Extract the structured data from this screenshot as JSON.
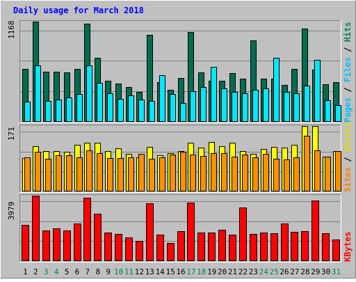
{
  "chart_data": {
    "title": "Daily usage for March 2018",
    "type": "bar",
    "x_labels": [
      "1",
      "2",
      "3",
      "4",
      "5",
      "6",
      "7",
      "8",
      "9",
      "10",
      "11",
      "12",
      "13",
      "14",
      "15",
      "16",
      "17",
      "18",
      "19",
      "20",
      "21",
      "22",
      "23",
      "24",
      "25",
      "26",
      "27",
      "28",
      "29",
      "30",
      "31"
    ],
    "weekend_days": [
      3,
      4,
      10,
      11,
      17,
      18,
      24,
      25,
      31
    ],
    "grid": true,
    "panels": [
      {
        "id": "hits-panel",
        "axis_max_label": "1168",
        "ymax": 1168,
        "series": [
          {
            "name": "Hits",
            "color": "#006C50",
            "values": [
              610,
              1168,
              580,
              580,
              570,
              615,
              1140,
              740,
              470,
              440,
              400,
              345,
              1010,
              455,
              370,
              510,
              1045,
              570,
              470,
              470,
              560,
              500,
              950,
              500,
              500,
              425,
              615,
              1085,
              605,
              430,
              460
            ]
          },
          {
            "name": "Files",
            "color": "#00E8FF",
            "values": [
              225,
              650,
              240,
              255,
              275,
              315,
              650,
              450,
              330,
              265,
              300,
              255,
              240,
              540,
              320,
              215,
              350,
              400,
              635,
              385,
              340,
              330,
              370,
              380,
              745,
              340,
              330,
              420,
              715,
              245,
              190
            ]
          }
        ]
      },
      {
        "id": "visits-panel",
        "axis_max_label": "171",
        "ymax": 171,
        "series": [
          {
            "name": "Visits",
            "color": "#FFFF00",
            "values": [
              86,
              118,
              104,
              105,
              103,
              121,
              127,
              126,
              104,
              112,
              97,
              88,
              115,
              94,
              100,
              105,
              126,
              114,
              128,
              117,
              127,
              105,
              97,
              111,
              116,
              114,
              121,
              171,
              171,
              90,
              105
            ]
          },
          {
            "name": "Sites",
            "color": "#FF9000",
            "values": [
              89,
              103,
              84,
              94,
              93,
              88,
              106,
              100,
              86,
              86,
              89,
              98,
              85,
              89,
              96,
              103,
              95,
              92,
              99,
              99,
              90,
              95,
              89,
              98,
              85,
              82,
              88,
              145,
              106,
              91,
              104
            ]
          }
        ]
      },
      {
        "id": "kbytes-panel",
        "axis_max_label": "3979",
        "ymax": 3979,
        "series": [
          {
            "name": "KBytes",
            "color": "#FF0000",
            "values": [
              2200,
              3979,
              1850,
              1970,
              1850,
              2280,
              3840,
              2850,
              1700,
              1640,
              1400,
              1200,
              3520,
              1590,
              1090,
              1800,
              3560,
              1700,
              1700,
              1870,
              1580,
              3260,
              1640,
              1710,
              1680,
              2280,
              1760,
              1800,
              3700,
              1670,
              1270
            ]
          }
        ]
      }
    ],
    "legend": [
      "Pages",
      "Files",
      "Hits",
      "Sites",
      "Visits",
      "KBytes"
    ]
  },
  "colors": {
    "background": "#C0C0C0",
    "title": "#0000FF",
    "day_label": "#000000",
    "weekend_label": "#00805C",
    "pages": "#00C0FF",
    "files": "#00C0FF",
    "hits": "#00805C",
    "sites": "#FF8000",
    "visits": "#FFFF00",
    "kbytes": "#FF0000",
    "legend_sep": "#000000"
  }
}
